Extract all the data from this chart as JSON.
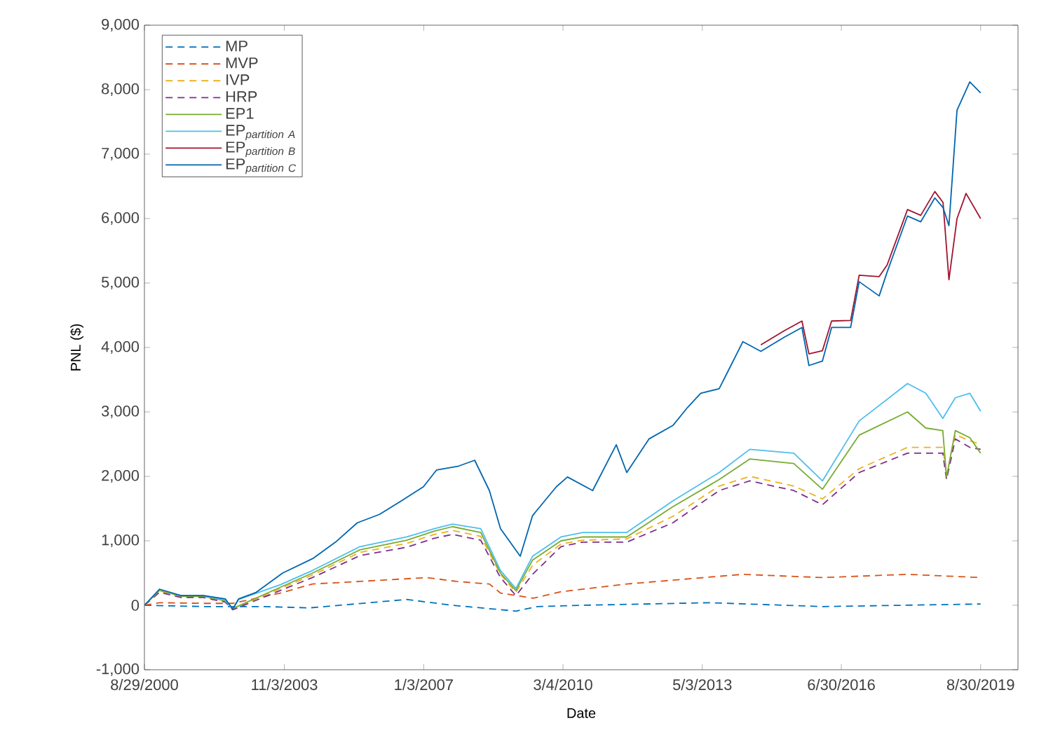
{
  "chart_data": {
    "type": "line",
    "xlabel": "Date",
    "ylabel": "PNL ($)",
    "xlim": [
      "2000-08-29",
      "2020-07-05"
    ],
    "xticks": [
      {
        "value": "2000-08-29",
        "label": "8/29/2000"
      },
      {
        "value": "2003-11-03",
        "label": "11/3/2003"
      },
      {
        "value": "2007-01-03",
        "label": "1/3/2007"
      },
      {
        "value": "2010-03-04",
        "label": "3/4/2010"
      },
      {
        "value": "2013-05-03",
        "label": "5/3/2013"
      },
      {
        "value": "2016-06-30",
        "label": "6/30/2016"
      },
      {
        "value": "2019-08-30",
        "label": "8/30/2019"
      }
    ],
    "ylim": [
      -1000,
      9000
    ],
    "yticks": [
      {
        "value": -1000,
        "label": "-1,000"
      },
      {
        "value": 0,
        "label": "0"
      },
      {
        "value": 1000,
        "label": "1,000"
      },
      {
        "value": 2000,
        "label": "2,000"
      },
      {
        "value": 3000,
        "label": "3,000"
      },
      {
        "value": 4000,
        "label": "4,000"
      },
      {
        "value": 5000,
        "label": "5,000"
      },
      {
        "value": 6000,
        "label": "6,000"
      },
      {
        "value": 7000,
        "label": "7,000"
      },
      {
        "value": 8000,
        "label": "8,000"
      },
      {
        "value": 9000,
        "label": "9,000"
      }
    ],
    "legend": "top left",
    "series": [
      {
        "name": "\\mathrm{MP}",
        "color": "#0072bd",
        "line_style": "dashed",
        "x": [
          "2000-08-29",
          "2002-01-01",
          "2003-06-01",
          "2004-06-01",
          "2006-08-15",
          "2007-08-30",
          "2009-02-06",
          "2009-08-01",
          "2010-08-15",
          "2013-07-01",
          "2016-02-01",
          "2019-08-30"
        ],
        "values": [
          0,
          -20,
          -20,
          -40,
          90,
          0,
          -90,
          -20,
          0,
          40,
          -20,
          20
        ]
      },
      {
        "name": "\\mathrm{MVP}",
        "color": "#d95319",
        "line_style": "dashed",
        "x": [
          "2000-08-29",
          "2001-01-01",
          "2002-01-01",
          "2002-09-01",
          "2003-10-01",
          "2004-06-24",
          "2005-07-22",
          "2007-02-01",
          "2007-10-01",
          "2008-07-01",
          "2008-10-01",
          "2009-07-01",
          "2010-02-15",
          "2011-08-15",
          "2014-04-01",
          "2016-01-25",
          "2018-01-01",
          "2019-08-30"
        ],
        "values": [
          0,
          40,
          30,
          30,
          190,
          330,
          370,
          430,
          370,
          330,
          190,
          110,
          210,
          330,
          480,
          430,
          480,
          430
        ]
      },
      {
        "name": "\\mathrm{IVP}",
        "color": "#edb120",
        "line_style": "dashed",
        "x": [
          "2000-08-29",
          "2001-01-01",
          "2001-07-01",
          "2002-01-01",
          "2002-07-01",
          "2002-09-01",
          "2003-10-01",
          "2004-06-24",
          "2005-07-22",
          "2006-08-15",
          "2007-04-01",
          "2007-08-30",
          "2008-04-20",
          "2008-10-01",
          "2009-02-06",
          "2009-06-24",
          "2010-02-15",
          "2010-08-15",
          "2011-08-15",
          "2012-09-01",
          "2013-09-20",
          "2014-06-01",
          "2015-06-01",
          "2016-01-25",
          "2016-11-25",
          "2017-12-31",
          "2018-06-01",
          "2018-10-20",
          "2018-11-20",
          "2019-02-01",
          "2019-06-01",
          "2019-08-30"
        ],
        "values": [
          0,
          220,
          130,
          130,
          60,
          -60,
          260,
          470,
          820,
          960,
          1100,
          1160,
          1070,
          480,
          200,
          620,
          950,
          1010,
          1030,
          1380,
          1850,
          2000,
          1850,
          1650,
          2120,
          2450,
          2450,
          2450,
          2000,
          2650,
          2550,
          2500
        ]
      },
      {
        "name": "\\mathrm{HRP}",
        "color": "#7e2f8e",
        "line_style": "dashed",
        "x": [
          "2000-08-29",
          "2001-01-01",
          "2001-07-01",
          "2002-01-01",
          "2002-07-01",
          "2002-09-01",
          "2003-10-01",
          "2004-06-24",
          "2005-07-22",
          "2006-08-15",
          "2007-04-01",
          "2007-08-30",
          "2008-04-20",
          "2008-10-01",
          "2009-02-06",
          "2009-06-24",
          "2010-02-15",
          "2010-08-15",
          "2011-08-15",
          "2012-09-01",
          "2013-09-20",
          "2014-06-01",
          "2015-06-01",
          "2016-01-25",
          "2016-11-25",
          "2017-12-31",
          "2018-06-01",
          "2018-10-20",
          "2018-11-20",
          "2019-02-01",
          "2019-06-01",
          "2019-08-30"
        ],
        "values": [
          0,
          200,
          120,
          120,
          50,
          -70,
          230,
          430,
          770,
          900,
          1040,
          1100,
          1010,
          430,
          150,
          480,
          910,
          980,
          980,
          1280,
          1780,
          1930,
          1780,
          1560,
          2060,
          2360,
          2360,
          2360,
          1950,
          2580,
          2450,
          2420
        ]
      },
      {
        "name": "\\mathrm{EP1}",
        "color": "#77ac30",
        "line_style": "solid",
        "x": [
          "2000-08-29",
          "2001-01-01",
          "2001-07-01",
          "2002-01-01",
          "2002-07-01",
          "2002-09-01",
          "2003-10-01",
          "2004-06-24",
          "2005-07-22",
          "2006-08-15",
          "2007-04-01",
          "2007-08-30",
          "2008-04-20",
          "2008-10-01",
          "2009-02-06",
          "2009-06-24",
          "2010-02-15",
          "2010-08-15",
          "2011-08-15",
          "2012-09-01",
          "2013-09-20",
          "2014-06-01",
          "2015-06-01",
          "2016-01-25",
          "2016-11-25",
          "2017-12-31",
          "2018-06-01",
          "2018-10-20",
          "2018-11-20",
          "2019-02-01",
          "2019-06-01",
          "2019-08-30"
        ],
        "values": [
          0,
          230,
          140,
          140,
          70,
          -50,
          280,
          500,
          860,
          1010,
          1150,
          1220,
          1130,
          500,
          230,
          700,
          1000,
          1060,
          1060,
          1530,
          1950,
          2270,
          2200,
          1800,
          2640,
          3000,
          2750,
          2710,
          1990,
          2710,
          2600,
          2360
        ]
      },
      {
        "name": "\\mathrm{EP}_{\\mathit{partition\\ A}}",
        "color": "#4dbeee",
        "line_style": "solid",
        "x": [
          "2001-07-01",
          "2002-01-01",
          "2002-07-01",
          "2002-09-01",
          "2002-10-20",
          "2003-10-01",
          "2004-06-24",
          "2005-07-22",
          "2006-08-15",
          "2007-04-01",
          "2007-08-30",
          "2008-04-20",
          "2008-10-01",
          "2009-02-06",
          "2009-06-24",
          "2010-02-15",
          "2010-08-15",
          "2011-08-15",
          "2012-09-01",
          "2013-09-20",
          "2014-06-01",
          "2015-06-01",
          "2016-01-25",
          "2016-11-25",
          "2017-12-31",
          "2018-06-01",
          "2018-10-20",
          "2019-02-01",
          "2019-06-01",
          "2019-08-30"
        ],
        "values": [
          150,
          150,
          80,
          -60,
          90,
          320,
          540,
          910,
          1060,
          1190,
          1260,
          1190,
          540,
          260,
          760,
          1060,
          1130,
          1130,
          1620,
          2060,
          2420,
          2360,
          1930,
          2860,
          3440,
          3290,
          2900,
          3220,
          3290,
          3010
        ]
      },
      {
        "name": "\\mathrm{EP}_{\\mathit{partition\\ B}}",
        "color": "#a2142f",
        "line_style": "solid",
        "x": [
          "2014-09-01",
          "2015-03-15",
          "2015-08-08",
          "2015-10-05",
          "2016-01-25",
          "2016-04-10",
          "2016-09-15",
          "2016-11-25",
          "2017-05-10",
          "2017-07-15",
          "2017-12-31",
          "2018-04-20",
          "2018-08-15",
          "2018-10-22",
          "2018-12-10",
          "2019-02-15",
          "2019-05-01",
          "2019-08-30"
        ],
        "values": [
          4040,
          4260,
          4410,
          3900,
          3950,
          4410,
          4420,
          5120,
          5100,
          5280,
          6140,
          6050,
          6420,
          6250,
          5050,
          6000,
          6390,
          6000
        ]
      },
      {
        "name": "\\mathrm{EP}_{\\mathit{partition\\ C}}",
        "color": "#0066b0",
        "line_style": "solid",
        "x": [
          "2000-08-29",
          "2001-01-01",
          "2001-07-01",
          "2002-01-01",
          "2002-07-01",
          "2002-09-01",
          "2002-10-20",
          "2003-03-14",
          "2003-10-20",
          "2004-07-01",
          "2005-01-01",
          "2005-07-01",
          "2006-01-01",
          "2006-07-01",
          "2007-01-01",
          "2007-04-20",
          "2007-10-20",
          "2008-03-01",
          "2008-07-01",
          "2008-10-01",
          "2009-03-14",
          "2009-06-24",
          "2010-01-08",
          "2010-04-10",
          "2010-11-05",
          "2011-05-20",
          "2011-08-15",
          "2012-02-15",
          "2012-09-01",
          "2013-01-01",
          "2013-04-20",
          "2013-09-20",
          "2013-12-10",
          "2014-04-05",
          "2014-09-01",
          "2015-03-15",
          "2015-08-08",
          "2015-10-05",
          "2016-01-25",
          "2016-04-10",
          "2016-09-15",
          "2016-11-25",
          "2017-05-10",
          "2017-07-15",
          "2017-12-31",
          "2018-04-20",
          "2018-08-15",
          "2018-10-22",
          "2018-12-10",
          "2019-02-15",
          "2019-06-01",
          "2019-08-30"
        ],
        "values": [
          0,
          250,
          150,
          150,
          100,
          -60,
          100,
          200,
          500,
          730,
          980,
          1280,
          1410,
          1620,
          1840,
          2100,
          2160,
          2250,
          1780,
          1190,
          760,
          1390,
          1840,
          1990,
          1780,
          2490,
          2060,
          2580,
          2790,
          3070,
          3290,
          3360,
          3660,
          4090,
          3940,
          4160,
          4310,
          3720,
          3790,
          4310,
          4310,
          5020,
          4800,
          5170,
          6040,
          5950,
          6320,
          6170,
          5890,
          7680,
          8120,
          7950
        ]
      }
    ]
  }
}
